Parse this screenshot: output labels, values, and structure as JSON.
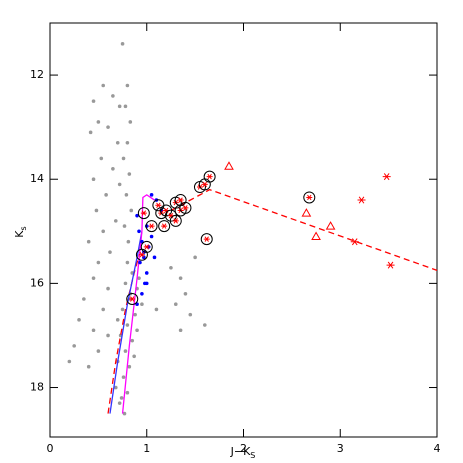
{
  "chart_data": {
    "type": "scatter",
    "xlabel": "J−K",
    "xlabel_subscript": "S",
    "ylabel": "K",
    "ylabel_subscript": "s",
    "xlim": [
      0,
      4
    ],
    "xticks": [
      0,
      1,
      2,
      3,
      4
    ],
    "ylim": [
      11,
      18.95
    ],
    "yticks": [
      12,
      14,
      16,
      18
    ],
    "invert_y": true,
    "series": [
      {
        "mode": "markers",
        "marker": "dot",
        "color": "#999999",
        "x": [
          0.75,
          0.55,
          0.65,
          0.45,
          0.72,
          0.5,
          0.6,
          0.42,
          0.7,
          0.53,
          0.65,
          0.45,
          0.72,
          0.58,
          0.48,
          0.68,
          0.55,
          0.4,
          0.62,
          0.5,
          0.45,
          0.6,
          0.35,
          0.55,
          0.3,
          0.45,
          0.25,
          0.5,
          0.6,
          0.2,
          0.4,
          0.8,
          0.85,
          0.78,
          0.9,
          0.82,
          0.75,
          0.88,
          0.8,
          0.73,
          0.85,
          0.78,
          0.7,
          0.82,
          0.76,
          0.68,
          0.8,
          0.72,
          0.77,
          0.9,
          0.95,
          0.7,
          0.87,
          0.74,
          0.83,
          0.92,
          0.8,
          0.78,
          0.83,
          0.8,
          0.76,
          0.82,
          0.79,
          0.84,
          0.77,
          0.81,
          1.35,
          1.4,
          1.3,
          1.45,
          1.25,
          1.1,
          1.6,
          1.35,
          1.5
        ],
        "values": [
          11.4,
          12.2,
          12.4,
          12.5,
          12.6,
          12.9,
          13.0,
          13.1,
          13.3,
          13.6,
          13.8,
          14.0,
          14.1,
          14.3,
          14.6,
          14.8,
          15.0,
          15.2,
          15.4,
          15.6,
          15.9,
          16.1,
          16.3,
          16.5,
          16.7,
          16.9,
          17.2,
          17.3,
          17.0,
          17.5,
          17.6,
          15.6,
          15.8,
          16.0,
          16.1,
          16.3,
          16.5,
          16.6,
          16.8,
          17.0,
          17.1,
          17.3,
          17.5,
          17.6,
          17.8,
          18.0,
          18.1,
          18.3,
          18.5,
          16.9,
          16.4,
          16.7,
          17.4,
          18.2,
          16.2,
          15.9,
          12.2,
          12.6,
          12.9,
          13.3,
          13.6,
          13.9,
          14.3,
          14.6,
          14.9,
          15.2,
          15.9,
          16.2,
          16.4,
          16.6,
          15.7,
          16.5,
          16.8,
          16.9,
          15.5
        ]
      },
      {
        "mode": "line",
        "dash": true,
        "color": "#ff0000",
        "x": [
          0.6,
          0.68,
          0.78,
          0.87,
          0.93
        ],
        "values": [
          18.5,
          17.5,
          16.5,
          15.8,
          15.4
        ]
      },
      {
        "mode": "line",
        "dash": false,
        "color": "#3333ff",
        "x": [
          0.62,
          0.7,
          0.8,
          0.9,
          0.95
        ],
        "values": [
          18.5,
          17.5,
          16.4,
          15.5,
          15.0
        ]
      },
      {
        "mode": "line",
        "dash": false,
        "color": "#ff00ff",
        "x": [
          0.75,
          0.82,
          0.9,
          0.95,
          0.96,
          1.0,
          1.08
        ],
        "values": [
          18.5,
          17.2,
          15.9,
          15.0,
          14.35,
          14.3,
          14.4
        ]
      },
      {
        "mode": "markers",
        "marker": "dot",
        "color": "#0000ff",
        "x": [
          0.95,
          0.97,
          0.93,
          1.0,
          0.98,
          1.02,
          1.05,
          0.9,
          0.92,
          1.0,
          1.08,
          0.95,
          0.97,
          1.0,
          0.9,
          1.1,
          1.05,
          1.15
        ],
        "values": [
          15.2,
          15.4,
          15.6,
          15.8,
          16.0,
          15.3,
          15.1,
          14.7,
          15.0,
          14.9,
          15.5,
          16.2,
          15.5,
          16.0,
          16.4,
          14.4,
          14.3,
          14.6
        ]
      },
      {
        "mode": "line",
        "dash": true,
        "color": "#ff0000",
        "x": [
          1.25,
          1.65,
          4.0
        ],
        "values": [
          14.6,
          14.2,
          15.75
        ]
      },
      {
        "mode": "markers",
        "marker": "circled-star",
        "color": "#ff0000",
        "x": [
          0.97,
          1.05,
          1.12,
          1.15,
          1.2,
          1.25,
          1.3,
          1.35,
          1.35,
          1.4,
          1.18,
          1.3,
          1.55,
          1.6,
          1.65,
          1.62,
          0.95,
          1.0,
          0.85,
          2.68
        ],
        "values": [
          14.65,
          14.9,
          14.5,
          14.65,
          14.6,
          14.7,
          14.45,
          14.4,
          14.6,
          14.55,
          14.9,
          14.8,
          14.15,
          14.1,
          13.95,
          15.15,
          15.45,
          15.3,
          16.3,
          14.35
        ]
      },
      {
        "mode": "markers",
        "marker": "triangle",
        "color": "#ff0000",
        "x": [
          1.85,
          2.65,
          2.75,
          2.9
        ],
        "values": [
          13.75,
          14.65,
          15.1,
          14.9
        ]
      },
      {
        "mode": "markers",
        "marker": "star",
        "color": "#ff0000",
        "x": [
          3.48,
          3.22,
          3.15,
          3.52
        ],
        "values": [
          13.95,
          14.4,
          15.2,
          15.65
        ]
      }
    ]
  }
}
